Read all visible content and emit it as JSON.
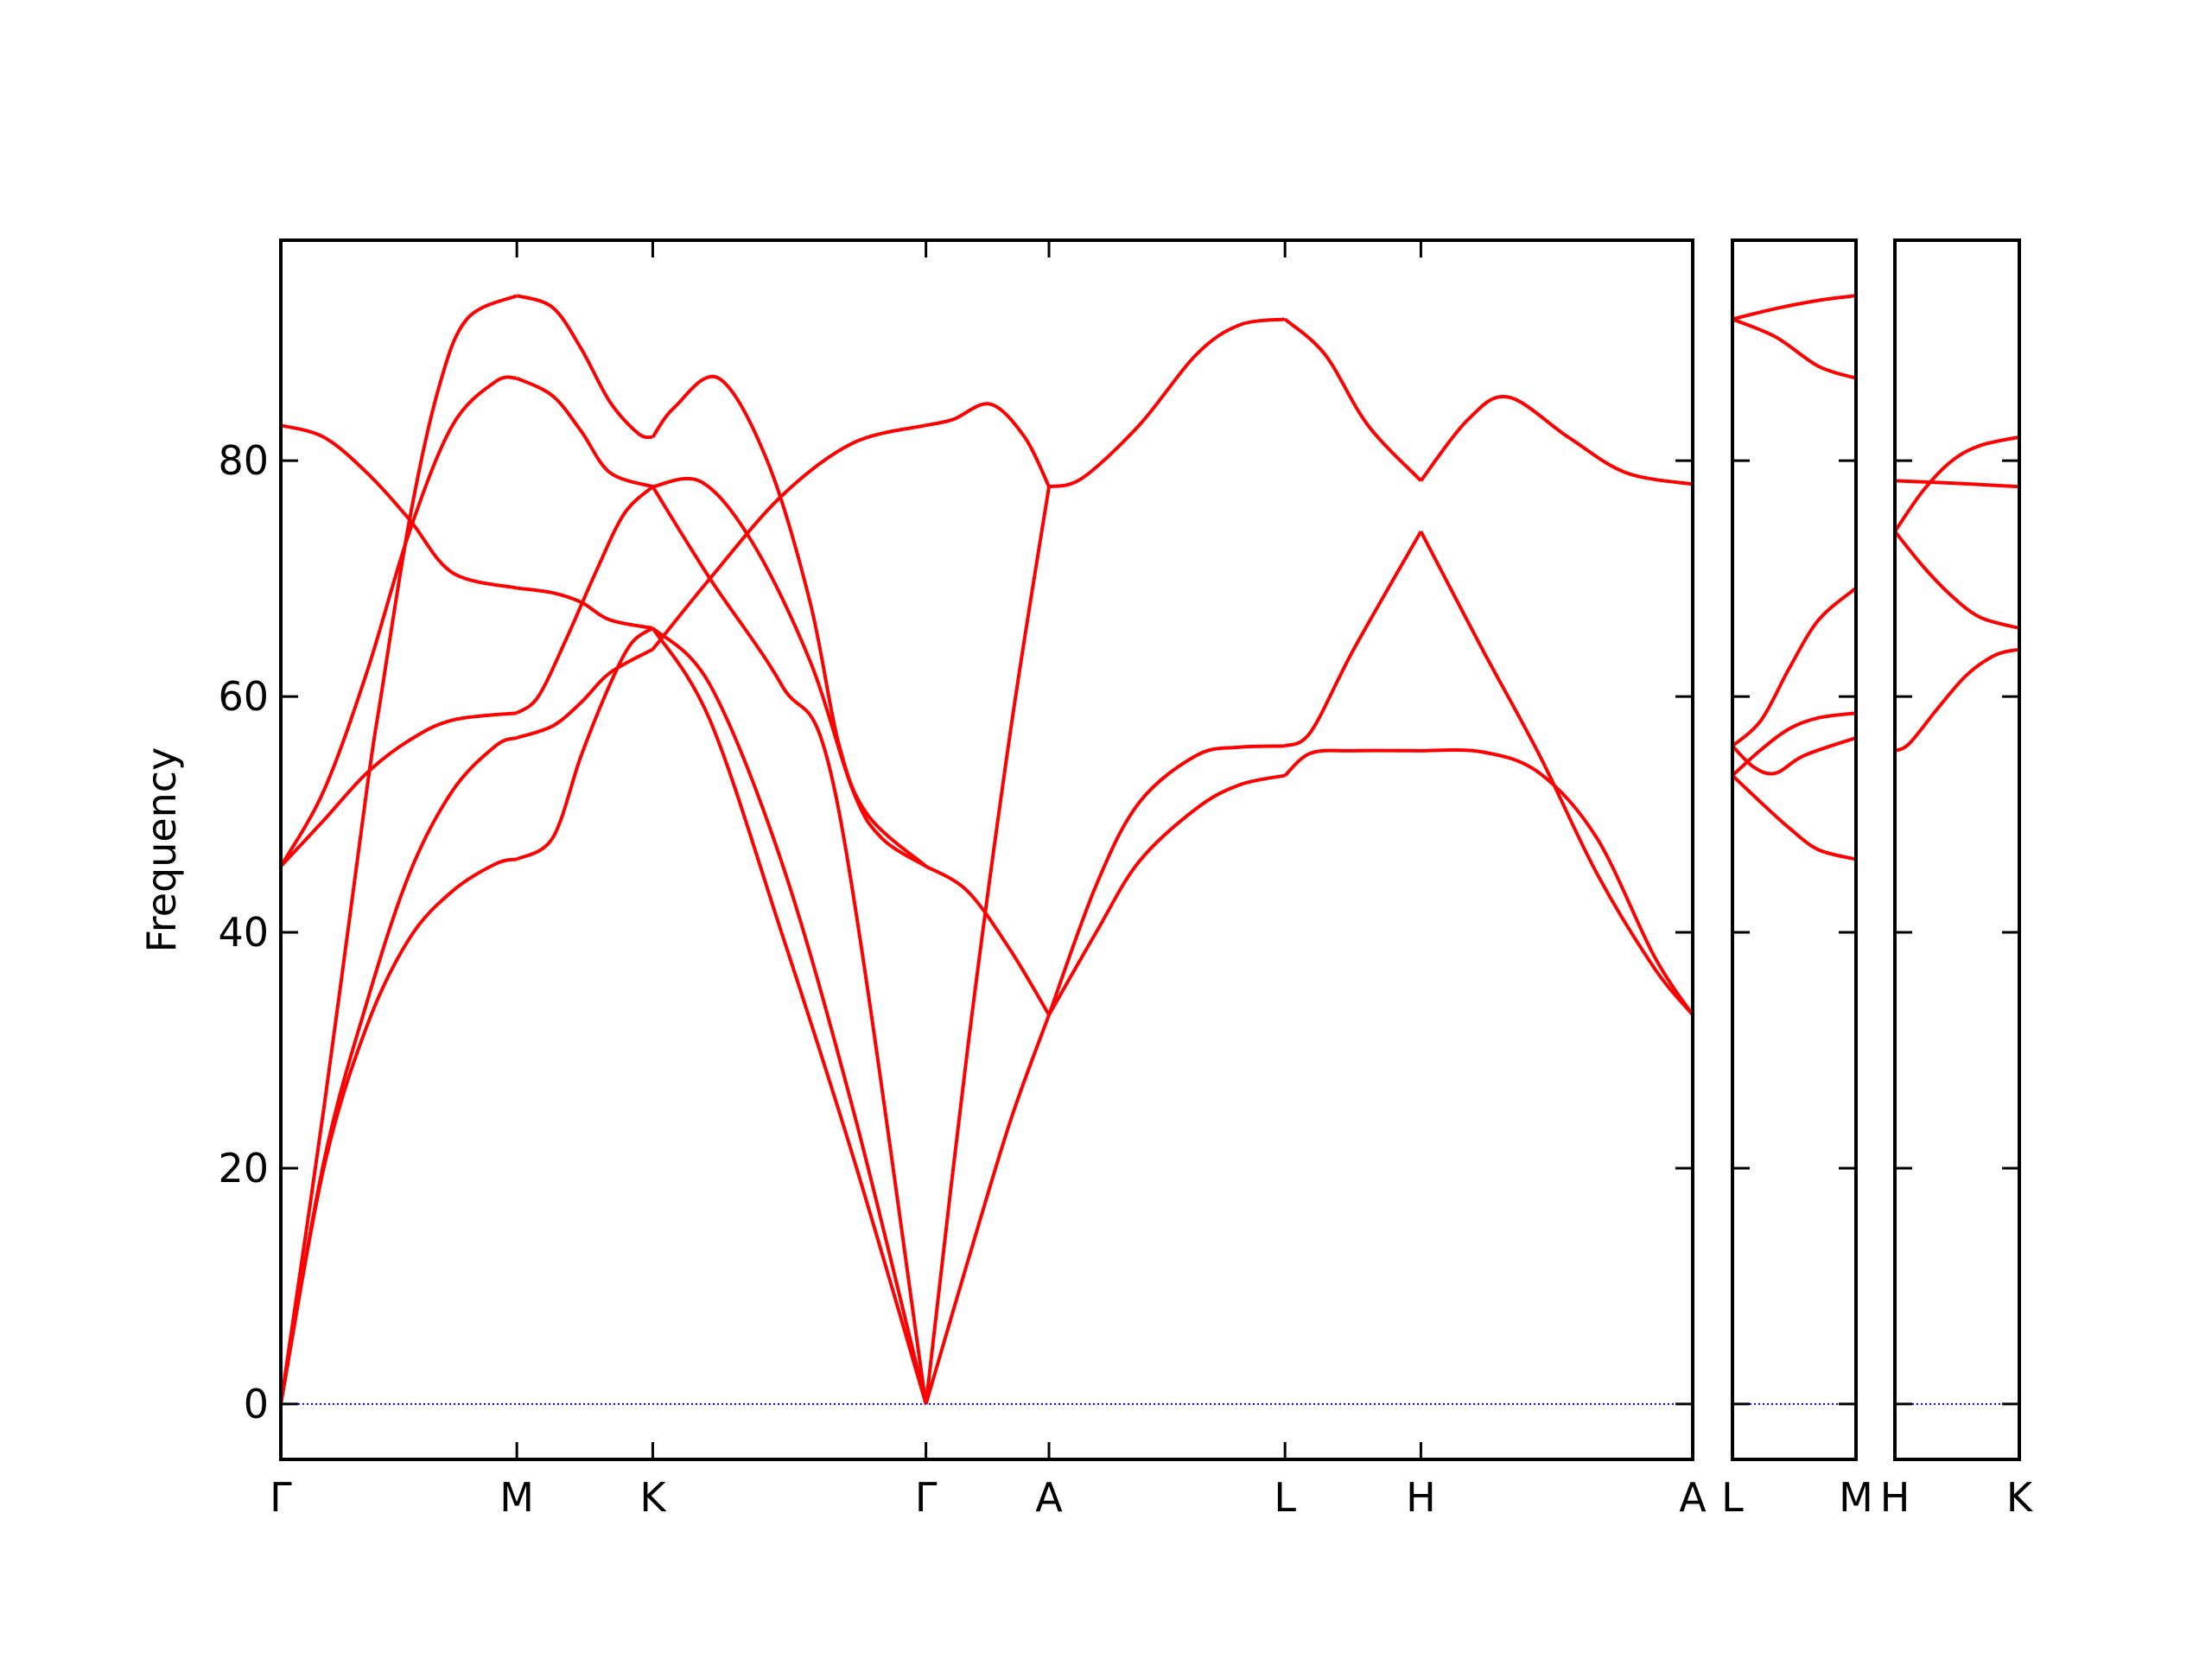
{
  "chart_data": [
    {
      "type": "line",
      "ylabel": "Frequency",
      "ylim": [
        -4.7,
        98.7
      ],
      "yticks": [
        0,
        20,
        40,
        60,
        80
      ],
      "ytick_labels": true,
      "xlim": [
        0,
        9.87
      ],
      "xticks": [
        {
          "value": 0,
          "label": "Γ"
        },
        {
          "value": 1.65,
          "label": "M"
        },
        {
          "value": 2.6,
          "label": "K"
        },
        {
          "value": 4.51,
          "label": "Γ"
        },
        {
          "value": 5.37,
          "label": "A"
        },
        {
          "value": 7.02,
          "label": "L"
        },
        {
          "value": 7.97,
          "label": "H"
        },
        {
          "value": 9.87,
          "label": "A"
        }
      ],
      "hline": 0,
      "hline_color": "#0000ff",
      "series": [
        {
          "color": "#ff0000",
          "x": [
            0,
            0.3,
            0.6,
            0.9,
            1.2,
            1.5,
            1.65
          ],
          "values": [
            0,
            20,
            32,
            39.5,
            43.5,
            45.8,
            46.2
          ]
        },
        {
          "color": "#ff0000",
          "x": [
            0,
            0.3,
            0.6,
            0.9,
            1.2,
            1.5,
            1.65
          ],
          "values": [
            0,
            20.5,
            34,
            45,
            52,
            55.8,
            56.5
          ]
        },
        {
          "color": "#ff0000",
          "x": [
            0,
            0.3,
            0.6,
            0.7,
            0.9,
            1.1,
            1.3,
            1.65
          ],
          "values": [
            0,
            25,
            52,
            60,
            75,
            86,
            92,
            94
          ]
        },
        {
          "color": "#ff0000",
          "x": [
            0,
            0.3,
            0.6,
            0.9,
            1.2,
            1.5,
            1.65
          ],
          "values": [
            45.6,
            52,
            62,
            74,
            83,
            86.7,
            87
          ]
        },
        {
          "color": "#ff0000",
          "x": [
            0,
            0.3,
            0.6,
            0.9,
            1.2,
            1.65
          ],
          "values": [
            45.6,
            49.5,
            53.5,
            56.3,
            58,
            58.6
          ]
        },
        {
          "color": "#ff0000",
          "x": [
            0,
            0.3,
            0.6,
            0.9,
            1.2,
            1.65
          ],
          "values": [
            83,
            82,
            79,
            75,
            70.5,
            69.2
          ]
        },
        {
          "color": "#ff0000",
          "x": [
            1.65,
            1.9,
            2.1,
            2.3,
            2.45,
            2.6
          ],
          "values": [
            46.2,
            48,
            55,
            61,
            64.5,
            65.8
          ]
        },
        {
          "color": "#ff0000",
          "x": [
            1.65,
            1.9,
            2.1,
            2.3,
            2.6
          ],
          "values": [
            56.5,
            57.5,
            59.5,
            62,
            64
          ]
        },
        {
          "color": "#ff0000",
          "x": [
            1.65,
            1.8,
            2.0,
            2.2,
            2.4,
            2.6
          ],
          "values": [
            58.6,
            60,
            65,
            70.5,
            75.5,
            77.8
          ]
        },
        {
          "color": "#ff0000",
          "x": [
            1.65,
            1.9,
            2.1,
            2.3,
            2.6
          ],
          "values": [
            69.2,
            68.8,
            68,
            66.5,
            65.8
          ]
        },
        {
          "color": "#ff0000",
          "x": [
            1.65,
            1.9,
            2.1,
            2.3,
            2.6
          ],
          "values": [
            87,
            85.5,
            82.5,
            79,
            77.8
          ]
        },
        {
          "color": "#ff0000",
          "x": [
            1.65,
            1.9,
            2.1,
            2.3,
            2.5,
            2.6
          ],
          "values": [
            94,
            93,
            89.5,
            85,
            82.3,
            82
          ]
        },
        {
          "color": "#ff0000",
          "x": [
            2.6,
            3.0,
            3.5,
            4.0,
            4.51
          ],
          "values": [
            65.8,
            58,
            40,
            21,
            0
          ]
        },
        {
          "color": "#ff0000",
          "x": [
            2.6,
            3.0,
            3.5,
            4.0,
            4.51
          ],
          "values": [
            65.8,
            61,
            46,
            25,
            0
          ]
        },
        {
          "color": "#ff0000",
          "x": [
            2.6,
            3.0,
            3.5,
            4.0,
            4.51
          ],
          "values": [
            64,
            70,
            77,
            81.5,
            83
          ]
        },
        {
          "color": "#ff0000",
          "x": [
            2.6,
            3.0,
            3.5,
            3.89,
            4.51
          ],
          "values": [
            77.8,
            70,
            61,
            51,
            0
          ]
        },
        {
          "color": "#ff0000",
          "x": [
            2.6,
            2.94,
            3.3,
            3.7,
            4.0,
            4.2,
            4.51
          ],
          "values": [
            77.8,
            78.2,
            73,
            63,
            52,
            48,
            45.6
          ]
        },
        {
          "color": "#ff0000",
          "x": [
            2.6,
            2.75,
            3.06,
            3.4,
            3.7,
            3.9,
            4.1,
            4.51
          ],
          "values": [
            82,
            84.5,
            87,
            80,
            68,
            56,
            50,
            45.6
          ]
        },
        {
          "color": "#ff0000",
          "x": [
            4.51,
            4.8,
            5.1,
            5.37
          ],
          "values": [
            0,
            12,
            24,
            33
          ]
        },
        {
          "color": "#ff0000",
          "x": [
            4.51,
            4.8,
            5.1,
            5.37
          ],
          "values": [
            0,
            30,
            57,
            77.8
          ]
        },
        {
          "color": "#ff0000",
          "x": [
            4.51,
            4.8,
            5.1,
            5.37
          ],
          "values": [
            45.6,
            43.5,
            38.5,
            33
          ]
        },
        {
          "color": "#ff0000",
          "x": [
            4.51,
            4.7,
            4.96,
            5.2,
            5.37
          ],
          "values": [
            83,
            83.5,
            84.8,
            82,
            77.8
          ]
        },
        {
          "color": "#ff0000",
          "x": [
            5.37,
            5.7,
            6.0,
            6.4,
            6.7,
            7.02
          ],
          "values": [
            33,
            40,
            46,
            50.5,
            52.5,
            53.3
          ]
        },
        {
          "color": "#ff0000",
          "x": [
            5.37,
            5.7,
            6.0,
            6.4,
            6.7,
            7.02
          ],
          "values": [
            33,
            44,
            51,
            55,
            55.7,
            55.8
          ]
        },
        {
          "color": "#ff0000",
          "x": [
            5.37,
            5.6,
            6.0,
            6.4,
            6.7,
            7.02
          ],
          "values": [
            77.8,
            78.5,
            83,
            89,
            91.5,
            92
          ]
        },
        {
          "color": "#ff0000",
          "x": [
            7.02,
            7.3,
            7.6,
            7.97
          ],
          "values": [
            92,
            89,
            83,
            78.3
          ]
        },
        {
          "color": "#ff0000",
          "x": [
            7.02,
            7.2,
            7.5,
            7.97
          ],
          "values": [
            55.8,
            57,
            64,
            74
          ]
        },
        {
          "color": "#ff0000",
          "x": [
            7.02,
            7.2,
            7.5,
            7.97
          ],
          "values": [
            53.3,
            55.2,
            55.4,
            55.4
          ]
        },
        {
          "color": "#ff0000",
          "x": [
            7.97,
            8.3,
            8.58,
            9.0,
            9.4,
            9.87
          ],
          "values": [
            78.3,
            83.5,
            85.4,
            82,
            79,
            78
          ]
        },
        {
          "color": "#ff0000",
          "x": [
            7.97,
            8.4,
            8.8,
            9.2,
            9.6,
            9.87
          ],
          "values": [
            74,
            64,
            55,
            45,
            37,
            33
          ]
        },
        {
          "color": "#ff0000",
          "x": [
            7.97,
            8.4,
            8.8,
            9.2,
            9.6,
            9.87
          ],
          "values": [
            55.4,
            55.3,
            53.5,
            48,
            38,
            33
          ]
        }
      ]
    },
    {
      "type": "line",
      "ylim": [
        -4.7,
        98.7
      ],
      "yticks": [
        0,
        20,
        40,
        60,
        80
      ],
      "ytick_labels": false,
      "xlim": [
        0,
        0.86
      ],
      "xticks": [
        {
          "value": 0,
          "label": "L"
        },
        {
          "value": 0.86,
          "label": "M"
        }
      ],
      "hline": 0,
      "hline_color": "#0000ff",
      "series": [
        {
          "color": "#ff0000",
          "x": [
            0,
            0.3,
            0.6,
            0.86
          ],
          "values": [
            92,
            92.9,
            93.6,
            94
          ]
        },
        {
          "color": "#ff0000",
          "x": [
            0,
            0.3,
            0.6,
            0.86
          ],
          "values": [
            92,
            90.5,
            88,
            87
          ]
        },
        {
          "color": "#ff0000",
          "x": [
            0,
            0.2,
            0.4,
            0.6,
            0.86
          ],
          "values": [
            55.8,
            58,
            62.5,
            66.5,
            69.2
          ]
        },
        {
          "color": "#ff0000",
          "x": [
            0,
            0.2,
            0.4,
            0.6,
            0.86
          ],
          "values": [
            53.3,
            55.5,
            57.3,
            58.2,
            58.6
          ]
        },
        {
          "color": "#ff0000",
          "x": [
            0,
            0.15,
            0.3,
            0.5,
            0.86
          ],
          "values": [
            55.8,
            54,
            53.5,
            55,
            56.5
          ]
        },
        {
          "color": "#ff0000",
          "x": [
            0,
            0.2,
            0.4,
            0.6,
            0.86
          ],
          "values": [
            53.3,
            51,
            48.8,
            47,
            46.2
          ]
        }
      ]
    },
    {
      "type": "line",
      "ylim": [
        -4.7,
        98.7
      ],
      "yticks": [
        0,
        20,
        40,
        60,
        80
      ],
      "ytick_labels": false,
      "xlim": [
        0,
        0.87
      ],
      "xticks": [
        {
          "value": 0,
          "label": "H"
        },
        {
          "value": 0.87,
          "label": "K"
        }
      ],
      "hline": 0,
      "hline_color": "#0000ff",
      "series": [
        {
          "color": "#ff0000",
          "x": [
            0,
            0.4,
            0.87
          ],
          "values": [
            78.3,
            78.1,
            77.8
          ]
        },
        {
          "color": "#ff0000",
          "x": [
            0,
            0.2,
            0.4,
            0.6,
            0.87
          ],
          "values": [
            74,
            77.5,
            80,
            81.3,
            82
          ]
        },
        {
          "color": "#ff0000",
          "x": [
            0,
            0.2,
            0.4,
            0.6,
            0.87
          ],
          "values": [
            74,
            71,
            68.5,
            66.7,
            65.8
          ]
        },
        {
          "color": "#ff0000",
          "x": [
            0,
            0.1,
            0.3,
            0.5,
            0.7,
            0.87
          ],
          "values": [
            55.4,
            56,
            59,
            61.8,
            63.5,
            64
          ]
        }
      ]
    }
  ]
}
